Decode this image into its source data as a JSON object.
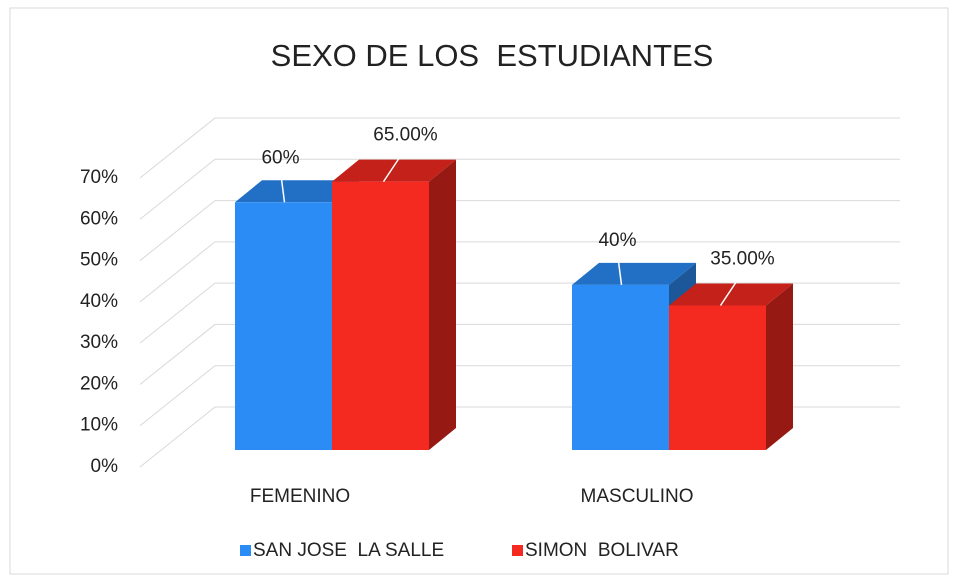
{
  "chart_data": {
    "type": "bar3d",
    "title": "SEXO DE LOS  ESTUDIANTES",
    "categories": [
      "FEMENINO",
      "MASCULINO"
    ],
    "series": [
      {
        "name": "SAN JOSE  LA SALLE",
        "color": "#2b8cf6",
        "values": [
          60,
          40
        ],
        "value_labels": [
          "60%",
          "40%"
        ]
      },
      {
        "name": "SIMON  BOLIVAR",
        "color": "#f4291f",
        "values": [
          65,
          35
        ],
        "value_labels": [
          "65.00%",
          "35.00%"
        ]
      }
    ],
    "ylim": [
      0,
      70
    ],
    "yticks": [
      {
        "value": 0,
        "label": "0%"
      },
      {
        "value": 10,
        "label": "10%"
      },
      {
        "value": 20,
        "label": "20%"
      },
      {
        "value": 30,
        "label": "30%"
      },
      {
        "value": 40,
        "label": "40%"
      },
      {
        "value": 50,
        "label": "50%"
      },
      {
        "value": 60,
        "label": "60%"
      },
      {
        "value": 70,
        "label": "70%"
      }
    ],
    "grid": true,
    "legend": "bottom"
  }
}
